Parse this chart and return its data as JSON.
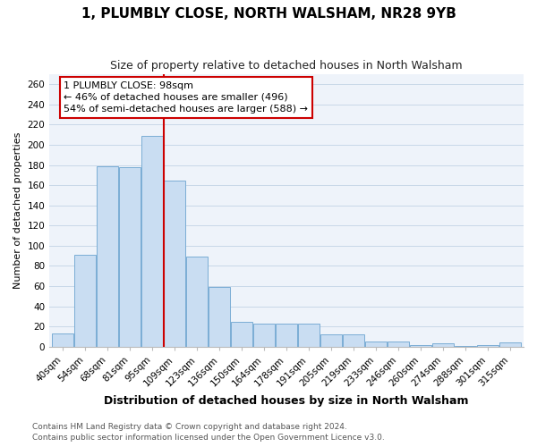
{
  "title": "1, PLUMBLY CLOSE, NORTH WALSHAM, NR28 9YB",
  "subtitle": "Size of property relative to detached houses in North Walsham",
  "xlabel": "Distribution of detached houses by size in North Walsham",
  "ylabel": "Number of detached properties",
  "categories": [
    "40sqm",
    "54sqm",
    "68sqm",
    "81sqm",
    "95sqm",
    "109sqm",
    "123sqm",
    "136sqm",
    "150sqm",
    "164sqm",
    "178sqm",
    "191sqm",
    "205sqm",
    "219sqm",
    "233sqm",
    "246sqm",
    "260sqm",
    "274sqm",
    "288sqm",
    "301sqm",
    "315sqm"
  ],
  "values": [
    13,
    91,
    179,
    178,
    209,
    165,
    89,
    59,
    25,
    23,
    23,
    23,
    12,
    12,
    5,
    5,
    2,
    3,
    1,
    2,
    4
  ],
  "bar_color": "#c9ddf2",
  "bar_edge_color": "#7aadd4",
  "vline_color": "#cc0000",
  "vline_x_index": 4.5,
  "annotation_text": "1 PLUMBLY CLOSE: 98sqm\n← 46% of detached houses are smaller (496)\n54% of semi-detached houses are larger (588) →",
  "annotation_box_facecolor": "#ffffff",
  "annotation_box_edgecolor": "#cc0000",
  "ylim": [
    0,
    270
  ],
  "yticks": [
    0,
    20,
    40,
    60,
    80,
    100,
    120,
    140,
    160,
    180,
    200,
    220,
    240,
    260
  ],
  "footer_text": "Contains HM Land Registry data © Crown copyright and database right 2024.\nContains public sector information licensed under the Open Government Licence v3.0.",
  "grid_color": "#c8d8e8",
  "bg_color": "#eef3fa",
  "title_fontsize": 11,
  "subtitle_fontsize": 9,
  "xlabel_fontsize": 9,
  "ylabel_fontsize": 8,
  "tick_fontsize": 7.5,
  "annotation_fontsize": 8,
  "footer_fontsize": 6.5
}
